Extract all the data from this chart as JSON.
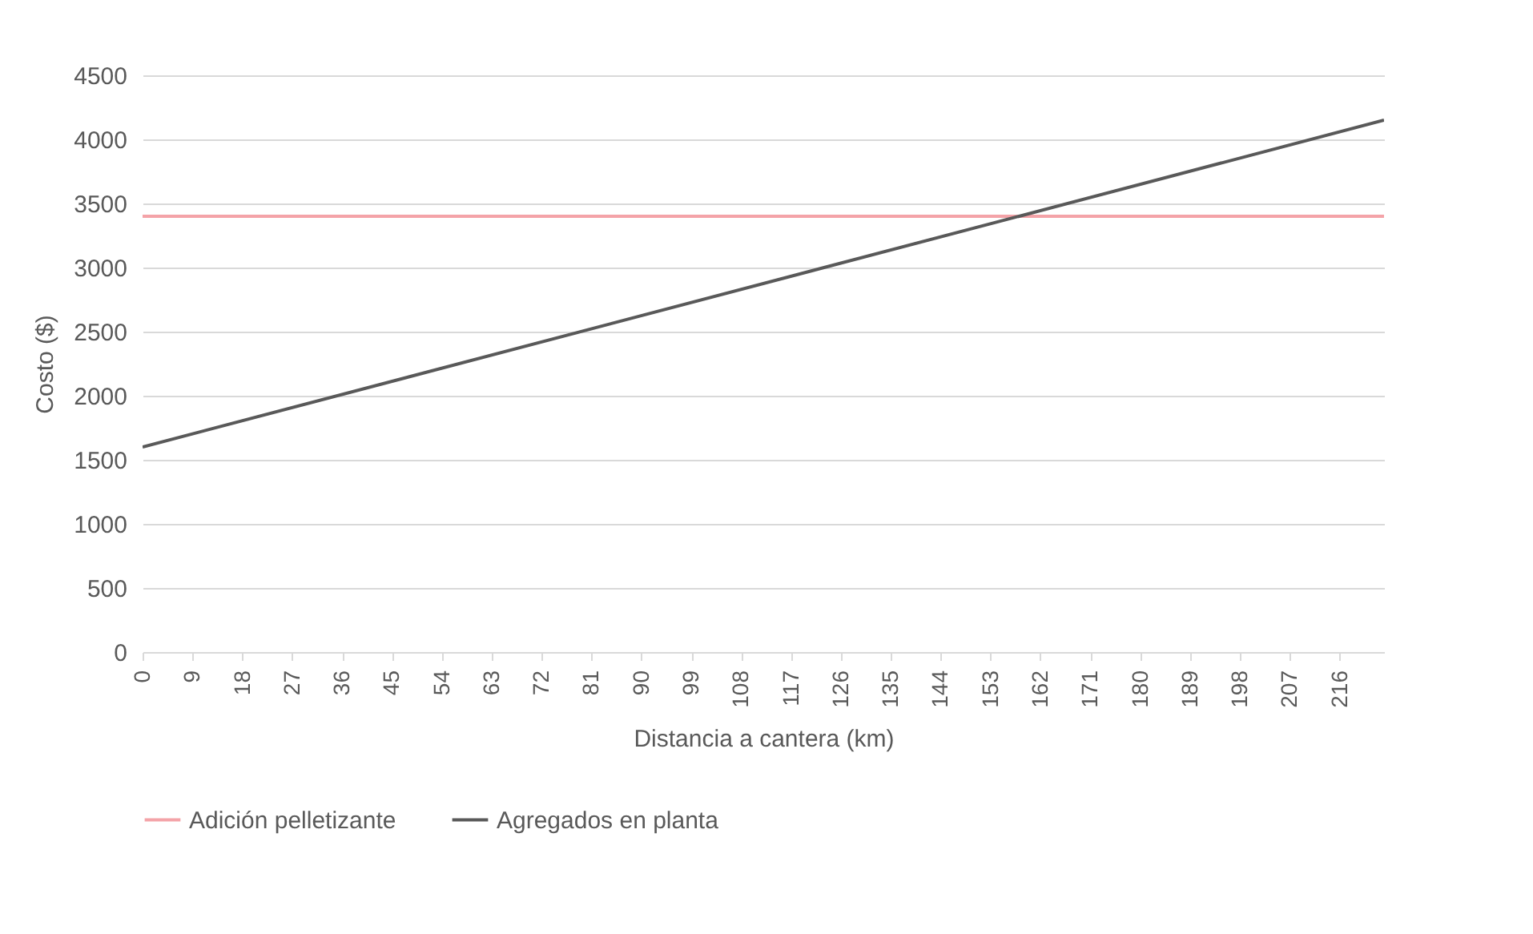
{
  "chart_data": {
    "type": "line",
    "xlabel": "Distancia a cantera (km)",
    "ylabel": "Costo ($)",
    "xlim": [
      0,
      224
    ],
    "xticks": [
      0,
      9,
      18,
      27,
      36,
      45,
      54,
      63,
      72,
      81,
      90,
      99,
      108,
      117,
      126,
      135,
      144,
      153,
      162,
      171,
      180,
      189,
      198,
      207,
      216
    ],
    "ylim": [
      0,
      4500
    ],
    "yticks": [
      0,
      500,
      1000,
      1500,
      2000,
      2500,
      3000,
      3500,
      4000,
      4500
    ],
    "grid": "y",
    "legend": "bottom",
    "x": [
      0,
      224
    ],
    "series": [
      {
        "name": "Adición pelletizante",
        "color": "#f4a3a8",
        "values": [
          3400,
          3400
        ]
      },
      {
        "name": "Agregados en planta",
        "color": "#595959",
        "values": [
          1600,
          4150
        ]
      }
    ]
  }
}
